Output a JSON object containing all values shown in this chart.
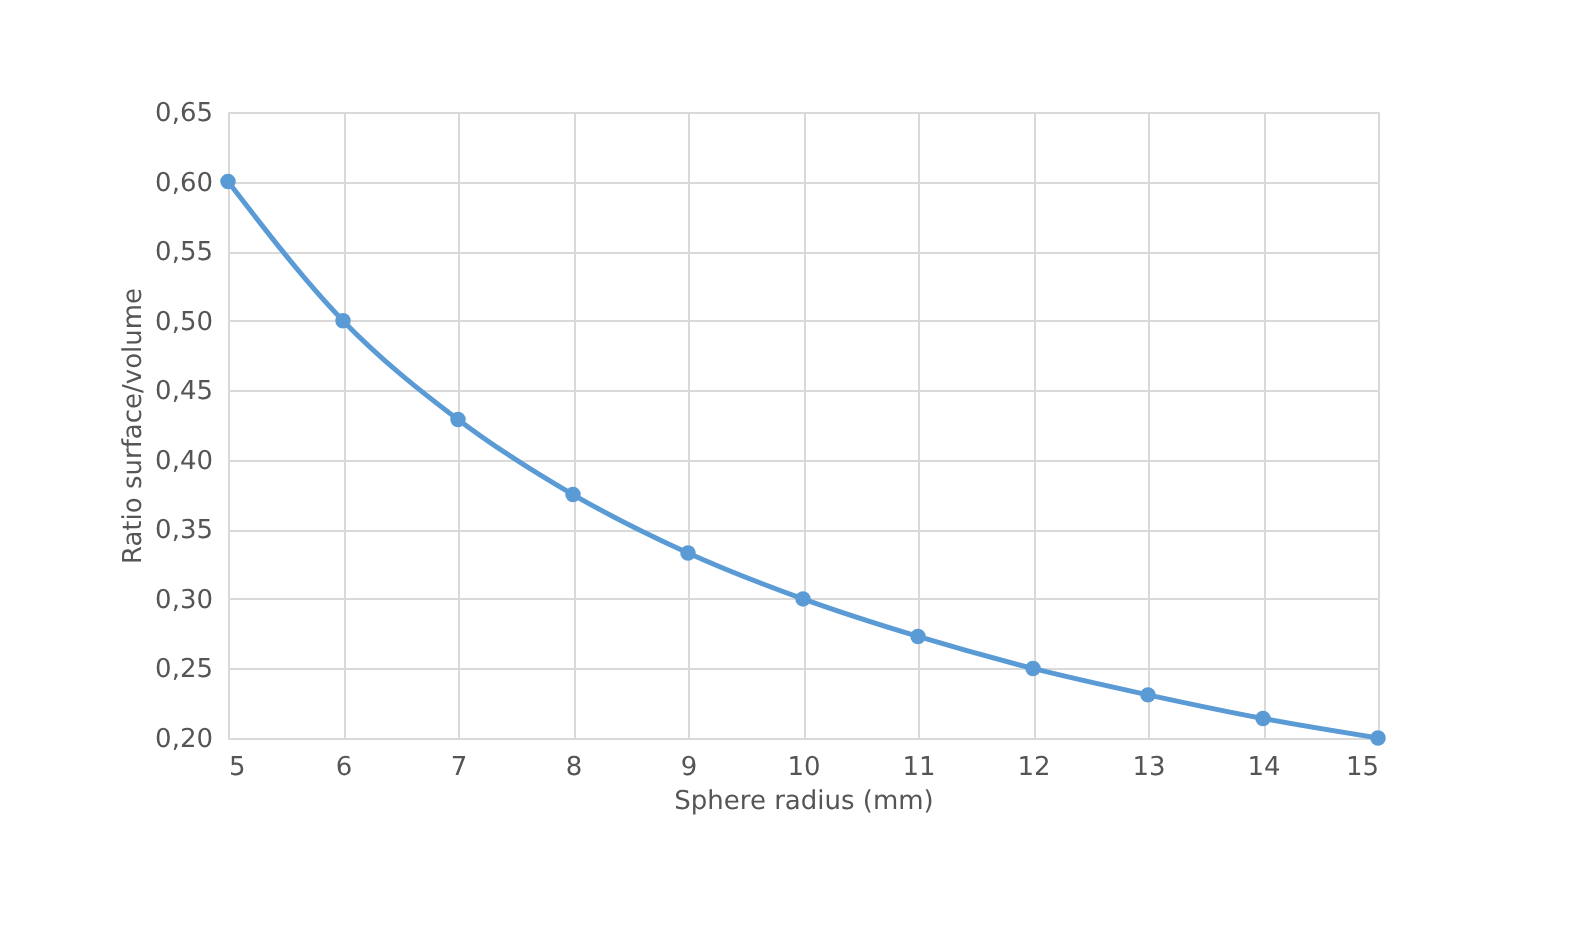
{
  "chart_data": {
    "type": "line",
    "xlabel": "Sphere radius (mm)",
    "ylabel": "Ratio surface/volume",
    "x": [
      5,
      6,
      7,
      8,
      9,
      10,
      11,
      12,
      13,
      14,
      15
    ],
    "series": [
      {
        "color": "#5b9bd5",
        "values": [
          0.6,
          0.5,
          0.429,
          0.375,
          0.333,
          0.3,
          0.273,
          0.25,
          0.231,
          0.214,
          0.2
        ]
      }
    ],
    "xlim": [
      5,
      15
    ],
    "xticks": [
      5,
      6,
      7,
      8,
      9,
      10,
      11,
      12,
      13,
      14,
      15
    ],
    "ylim": [
      0.2,
      0.65
    ],
    "yticks": [
      {
        "value": 0.2,
        "label": "0,20"
      },
      {
        "value": 0.25,
        "label": "0,25"
      },
      {
        "value": 0.3,
        "label": "0,30"
      },
      {
        "value": 0.35,
        "label": "0,35"
      },
      {
        "value": 0.4,
        "label": "0,40"
      },
      {
        "value": 0.45,
        "label": "0,45"
      },
      {
        "value": 0.5,
        "label": "0,50"
      },
      {
        "value": 0.55,
        "label": "0,55"
      },
      {
        "value": 0.6,
        "label": "0,60"
      },
      {
        "value": 0.65,
        "label": "0,65"
      }
    ],
    "grid": true,
    "marker": "circle",
    "line_style": "solid"
  }
}
